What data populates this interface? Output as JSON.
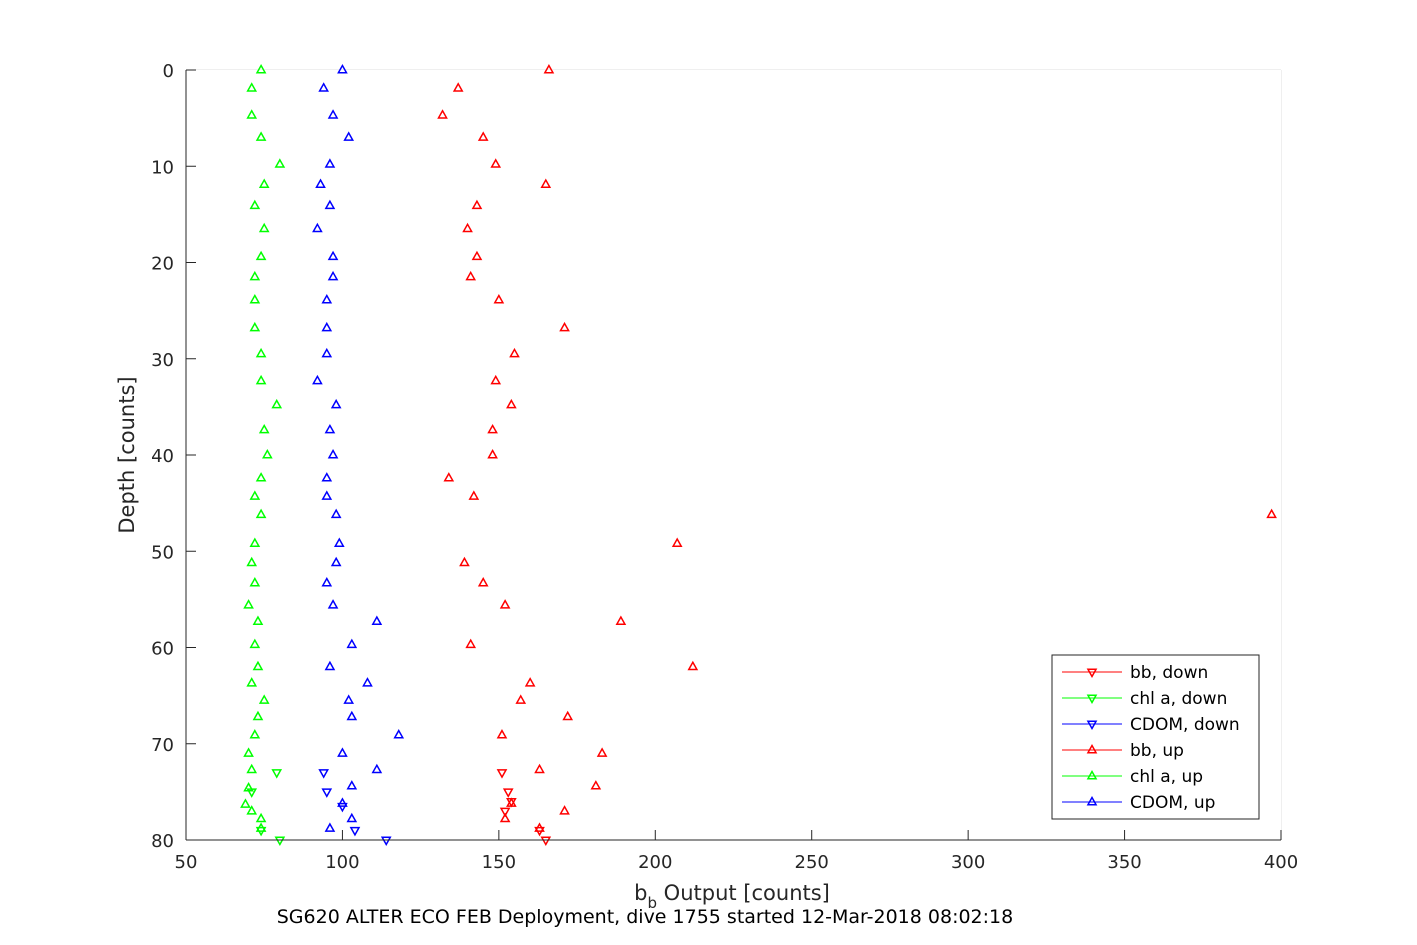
{
  "chart_data": {
    "type": "scatter",
    "title": "",
    "caption": "SG620 ALTER ECO FEB Deployment, dive 1755 started 12-Mar-2018 08:02:18",
    "xlabel_main": "b",
    "xlabel_sub": "b",
    "xlabel_rest": " Output [counts]",
    "ylabel": "Depth [counts]",
    "xlim": [
      50,
      400
    ],
    "ylim": [
      0,
      80
    ],
    "y_reversed": true,
    "grid": true,
    "legend_position": "bottom-right",
    "xticks": [
      "50",
      "100",
      "150",
      "200",
      "250",
      "300",
      "350",
      "400"
    ],
    "yticks": [
      "0",
      "10",
      "20",
      "30",
      "40",
      "50",
      "60",
      "70",
      "80"
    ],
    "colors": {
      "bb": "#ff0000",
      "chl": "#00ff00",
      "cdom": "#0000ff"
    },
    "series": [
      {
        "name": "bb, down",
        "marker": "down",
        "color": "#ff0000",
        "points": [
          [
            151,
            73
          ],
          [
            153,
            75
          ],
          [
            154,
            76
          ],
          [
            152,
            77
          ],
          [
            163,
            79
          ],
          [
            165,
            80
          ]
        ]
      },
      {
        "name": "chl a, down",
        "marker": "down",
        "color": "#00ff00",
        "points": [
          [
            79,
            73
          ],
          [
            71,
            75
          ],
          [
            74,
            79
          ],
          [
            80,
            80
          ]
        ]
      },
      {
        "name": "CDOM, down",
        "marker": "down",
        "color": "#0000ff",
        "points": [
          [
            94,
            73
          ],
          [
            95,
            75
          ],
          [
            100,
            76.5
          ],
          [
            104,
            79
          ],
          [
            114,
            80
          ]
        ]
      },
      {
        "name": "bb, up",
        "marker": "up",
        "color": "#ff0000",
        "points": [
          [
            166,
            0
          ],
          [
            137,
            1.9
          ],
          [
            132,
            4.7
          ],
          [
            145,
            7
          ],
          [
            149,
            9.8
          ],
          [
            165,
            11.9
          ],
          [
            143,
            14.1
          ],
          [
            140,
            16.5
          ],
          [
            143,
            19.4
          ],
          [
            141,
            21.5
          ],
          [
            150,
            23.9
          ],
          [
            171,
            26.8
          ],
          [
            155,
            29.5
          ],
          [
            149,
            32.3
          ],
          [
            154,
            34.8
          ],
          [
            148,
            37.4
          ],
          [
            148,
            40
          ],
          [
            134,
            42.4
          ],
          [
            142,
            44.3
          ],
          [
            397,
            46.2
          ],
          [
            207,
            49.2
          ],
          [
            139,
            51.2
          ],
          [
            145,
            53.3
          ],
          [
            152,
            55.6
          ],
          [
            189,
            57.3
          ],
          [
            141,
            59.7
          ],
          [
            212,
            62
          ],
          [
            160,
            63.7
          ],
          [
            157,
            65.5
          ],
          [
            172,
            67.2
          ],
          [
            151,
            69.1
          ],
          [
            183,
            71
          ],
          [
            163,
            72.7
          ],
          [
            181,
            74.4
          ],
          [
            154,
            76.2
          ],
          [
            171,
            77
          ],
          [
            152,
            77.8
          ],
          [
            163,
            78.8
          ]
        ]
      },
      {
        "name": "chl a, up",
        "marker": "up",
        "color": "#00ff00",
        "points": [
          [
            74,
            0
          ],
          [
            71,
            1.9
          ],
          [
            71,
            4.7
          ],
          [
            74,
            7
          ],
          [
            80,
            9.8
          ],
          [
            75,
            11.9
          ],
          [
            72,
            14.1
          ],
          [
            75,
            16.5
          ],
          [
            74,
            19.4
          ],
          [
            72,
            21.5
          ],
          [
            72,
            23.9
          ],
          [
            72,
            26.8
          ],
          [
            74,
            29.5
          ],
          [
            74,
            32.3
          ],
          [
            79,
            34.8
          ],
          [
            75,
            37.4
          ],
          [
            76,
            40
          ],
          [
            74,
            42.4
          ],
          [
            72,
            44.3
          ],
          [
            74,
            46.2
          ],
          [
            72,
            49.2
          ],
          [
            71,
            51.2
          ],
          [
            72,
            53.3
          ],
          [
            70,
            55.6
          ],
          [
            73,
            57.3
          ],
          [
            72,
            59.7
          ],
          [
            73,
            62
          ],
          [
            71,
            63.7
          ],
          [
            75,
            65.5
          ],
          [
            73,
            67.2
          ],
          [
            72,
            69.1
          ],
          [
            70,
            71
          ],
          [
            71,
            72.7
          ],
          [
            70,
            74.6
          ],
          [
            69,
            76.3
          ],
          [
            71,
            77
          ],
          [
            74,
            77.8
          ],
          [
            74,
            78.8
          ]
        ]
      },
      {
        "name": "CDOM, up",
        "marker": "up",
        "color": "#0000ff",
        "points": [
          [
            100,
            0
          ],
          [
            94,
            1.9
          ],
          [
            97,
            4.7
          ],
          [
            102,
            7
          ],
          [
            96,
            9.8
          ],
          [
            93,
            11.9
          ],
          [
            96,
            14.1
          ],
          [
            92,
            16.5
          ],
          [
            97,
            19.4
          ],
          [
            97,
            21.5
          ],
          [
            95,
            23.9
          ],
          [
            95,
            26.8
          ],
          [
            95,
            29.5
          ],
          [
            92,
            32.3
          ],
          [
            98,
            34.8
          ],
          [
            96,
            37.4
          ],
          [
            97,
            40
          ],
          [
            95,
            42.4
          ],
          [
            95,
            44.3
          ],
          [
            98,
            46.2
          ],
          [
            99,
            49.2
          ],
          [
            98,
            51.2
          ],
          [
            95,
            53.3
          ],
          [
            97,
            55.6
          ],
          [
            111,
            57.3
          ],
          [
            103,
            59.7
          ],
          [
            96,
            62
          ],
          [
            108,
            63.7
          ],
          [
            102,
            65.5
          ],
          [
            103,
            67.2
          ],
          [
            118,
            69.1
          ],
          [
            100,
            71
          ],
          [
            111,
            72.7
          ],
          [
            103,
            74.4
          ],
          [
            100,
            76.2
          ],
          [
            103,
            77.8
          ],
          [
            96,
            78.8
          ]
        ]
      }
    ]
  }
}
